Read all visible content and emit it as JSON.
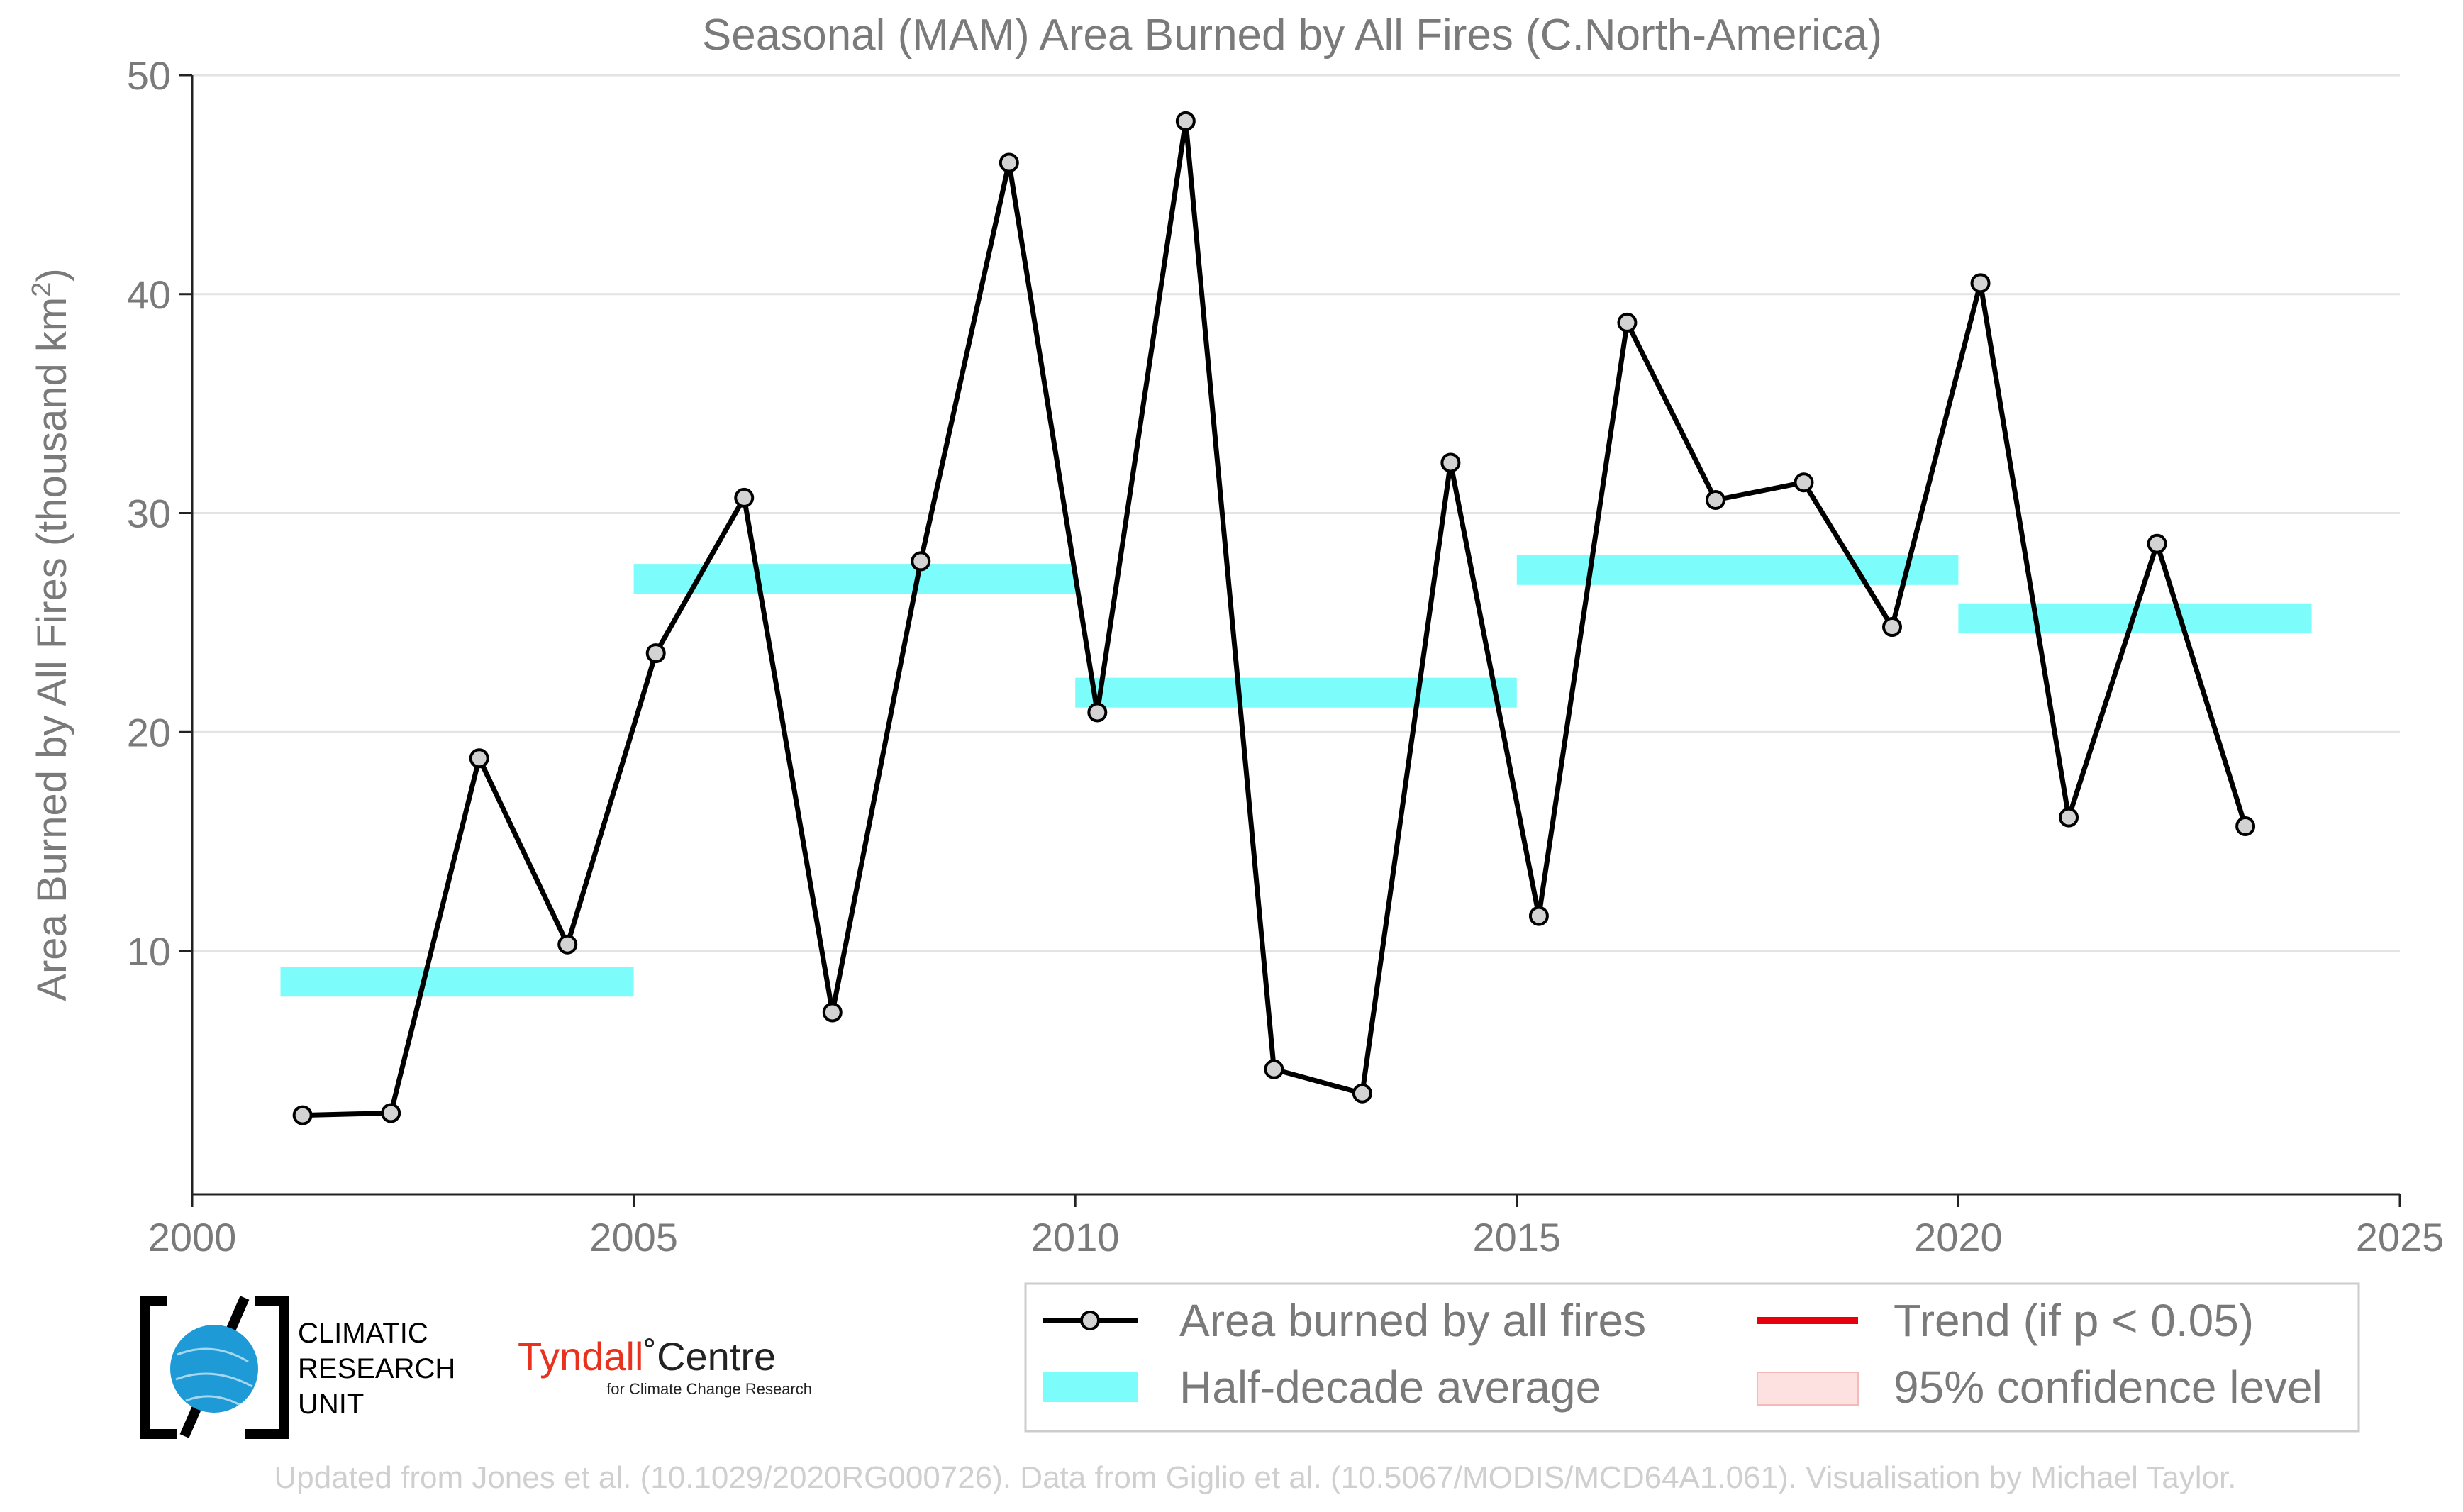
{
  "chart_data": {
    "type": "line",
    "title": "Seasonal (MAM) Area Burned by All Fires (C.North-America)",
    "xlabel": "",
    "ylabel": "Area Burned by All Fires (thousand km²)",
    "ylabel_main": "Area Burned by All Fires (thousand km",
    "ylabel_sup": "2",
    "ylabel_close": ")",
    "xlim": [
      2000,
      2025
    ],
    "ylim": [
      -1,
      50
    ],
    "xticks": [
      2000,
      2005,
      2010,
      2015,
      2020,
      2025
    ],
    "yticks": [
      10,
      20,
      30,
      40,
      50
    ],
    "grid": true,
    "series": [
      {
        "name": "Area burned by all fires",
        "kind": "line",
        "color": "#000000",
        "marker_fill": "#d3d3d3",
        "x": [
          2001.25,
          2002.25,
          2003.25,
          2004.25,
          2005.25,
          2006.25,
          2007.25,
          2008.25,
          2009.25,
          2010.25,
          2011.25,
          2012.25,
          2013.25,
          2014.25,
          2015.25,
          2016.25,
          2017.25,
          2018.25,
          2019.25,
          2020.25,
          2021.25,
          2022.25,
          2023.25
        ],
        "values": [
          2.5,
          2.6,
          18.8,
          10.3,
          23.6,
          30.7,
          7.2,
          27.8,
          46.0,
          20.9,
          47.9,
          4.6,
          3.5,
          32.3,
          11.6,
          38.7,
          30.6,
          31.4,
          24.8,
          40.5,
          16.1,
          28.6,
          15.7
        ]
      },
      {
        "name": "Half-decade average",
        "kind": "step",
        "color": "#7dfcfc",
        "segments": [
          {
            "x0": 2001,
            "x1": 2005,
            "value": 8.6
          },
          {
            "x0": 2005,
            "x1": 2010,
            "value": 27.0
          },
          {
            "x0": 2010,
            "x1": 2015,
            "value": 21.8
          },
          {
            "x0": 2015,
            "x1": 2020,
            "value": 27.4
          },
          {
            "x0": 2020,
            "x1": 2024,
            "value": 25.2
          }
        ]
      }
    ],
    "legend": {
      "placement": "bottom-right",
      "entries": [
        {
          "label": "Area burned by all fires",
          "kind": "line-marker",
          "color": "#000000"
        },
        {
          "label": "Trend (if p < 0.05)",
          "kind": "line",
          "color": "#e8000b"
        },
        {
          "label": "Half-decade average",
          "kind": "patch",
          "color": "#7dfcfc"
        },
        {
          "label": "95% confidence level",
          "kind": "patch",
          "color": "#fde0e0"
        }
      ]
    }
  },
  "logos": {
    "cru": [
      "CLIMATIC",
      "RESEARCH",
      "UNIT"
    ],
    "tyndall_main_a": "Tyndall",
    "tyndall_main_b": "˚Centre",
    "tyndall_sub": "for Climate Change Research"
  },
  "credit": "Updated from Jones et al. (10.1029/2020RG000726). Data from Giglio et al. (10.5067/MODIS/MCD64A1.061). Visualisation by Michael Taylor."
}
